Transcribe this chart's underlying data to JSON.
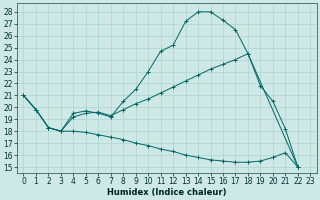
{
  "xlabel": "Humidex (Indice chaleur)",
  "bg_color": "#cde8e5",
  "line_color": "#006666",
  "grid_color": "#aed4d0",
  "xlim": [
    -0.5,
    23.5
  ],
  "ylim": [
    14.5,
    28.7
  ],
  "xticks": [
    0,
    1,
    2,
    3,
    4,
    5,
    6,
    7,
    8,
    9,
    10,
    11,
    12,
    13,
    14,
    15,
    16,
    17,
    18,
    19,
    20,
    21,
    22,
    23
  ],
  "yticks": [
    15,
    16,
    17,
    18,
    19,
    20,
    21,
    22,
    23,
    24,
    25,
    26,
    27,
    28
  ],
  "line1_x": [
    0,
    1,
    2,
    3,
    4,
    5,
    6,
    7,
    8,
    9,
    10,
    11,
    12,
    13,
    14,
    15,
    16,
    17,
    18,
    22
  ],
  "line1_y": [
    21.0,
    19.8,
    18.3,
    18.0,
    19.5,
    19.7,
    19.5,
    19.2,
    20.5,
    21.5,
    23.0,
    24.7,
    25.2,
    27.2,
    28.0,
    28.0,
    27.3,
    26.5,
    24.5,
    15.0
  ],
  "line2_x": [
    0,
    1,
    2,
    3,
    4,
    5,
    6,
    7,
    8,
    9,
    10,
    11,
    12,
    13,
    14,
    15,
    16,
    17,
    18,
    19,
    20,
    21,
    22
  ],
  "line2_y": [
    21.0,
    19.8,
    18.3,
    18.0,
    19.2,
    19.5,
    19.6,
    19.3,
    19.8,
    20.3,
    20.7,
    21.2,
    21.7,
    22.2,
    22.7,
    23.2,
    23.6,
    24.0,
    24.5,
    21.8,
    20.5,
    18.2,
    15.0
  ],
  "line3_x": [
    0,
    1,
    2,
    3,
    4,
    5,
    6,
    7,
    8,
    9,
    10,
    11,
    12,
    13,
    14,
    15,
    16,
    17,
    18,
    19,
    20,
    21,
    22
  ],
  "line3_y": [
    21.0,
    19.8,
    18.3,
    18.0,
    18.0,
    17.9,
    17.7,
    17.5,
    17.3,
    17.0,
    16.8,
    16.5,
    16.3,
    16.0,
    15.8,
    15.6,
    15.5,
    15.4,
    15.4,
    15.5,
    15.8,
    16.2,
    15.0
  ]
}
